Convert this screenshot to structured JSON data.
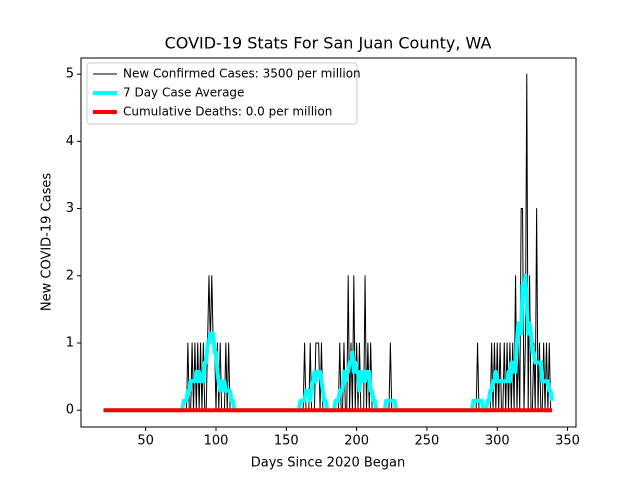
{
  "chart_data": {
    "type": "line",
    "title": "COVID-19 Stats For San Juan County, WA",
    "xlabel": "Days Since 2020 Began",
    "ylabel": "New COVID-19 Cases",
    "xlim": [
      4,
      356
    ],
    "ylim": [
      -0.25,
      5.24
    ],
    "xticks": [
      50,
      100,
      150,
      200,
      250,
      300,
      350
    ],
    "yticks": [
      0,
      1,
      2,
      3,
      4,
      5
    ],
    "legend": "upper left",
    "x": [
      20,
      21,
      22,
      23,
      24,
      25,
      26,
      27,
      28,
      29,
      30,
      31,
      32,
      33,
      34,
      35,
      36,
      37,
      38,
      39,
      40,
      41,
      42,
      43,
      44,
      45,
      46,
      47,
      48,
      49,
      50,
      51,
      52,
      53,
      54,
      55,
      56,
      57,
      58,
      59,
      60,
      61,
      62,
      63,
      64,
      65,
      66,
      67,
      68,
      69,
      70,
      71,
      72,
      73,
      74,
      75,
      76,
      77,
      78,
      79,
      80,
      81,
      82,
      83,
      84,
      85,
      86,
      87,
      88,
      89,
      90,
      91,
      92,
      93,
      94,
      95,
      96,
      97,
      98,
      99,
      100,
      101,
      102,
      103,
      104,
      105,
      106,
      107,
      108,
      109,
      110,
      111,
      112,
      113,
      114,
      115,
      116,
      117,
      118,
      119,
      120,
      121,
      122,
      123,
      124,
      125,
      126,
      127,
      128,
      129,
      130,
      131,
      132,
      133,
      134,
      135,
      136,
      137,
      138,
      139,
      140,
      141,
      142,
      143,
      144,
      145,
      146,
      147,
      148,
      149,
      150,
      151,
      152,
      153,
      154,
      155,
      156,
      157,
      158,
      159,
      160,
      161,
      162,
      163,
      164,
      165,
      166,
      167,
      168,
      169,
      170,
      171,
      172,
      173,
      174,
      175,
      176,
      177,
      178,
      179,
      180,
      181,
      182,
      183,
      184,
      185,
      186,
      187,
      188,
      189,
      190,
      191,
      192,
      193,
      194,
      195,
      196,
      197,
      198,
      199,
      200,
      201,
      202,
      203,
      204,
      205,
      206,
      207,
      208,
      209,
      210,
      211,
      212,
      213,
      214,
      215,
      216,
      217,
      218,
      219,
      220,
      221,
      222,
      223,
      224,
      225,
      226,
      227,
      228,
      229,
      230,
      231,
      232,
      233,
      234,
      235,
      236,
      237,
      238,
      239,
      240,
      241,
      242,
      243,
      244,
      245,
      246,
      247,
      248,
      249,
      250,
      251,
      252,
      253,
      254,
      255,
      256,
      257,
      258,
      259,
      260,
      261,
      262,
      263,
      264,
      265,
      266,
      267,
      268,
      269,
      270,
      271,
      272,
      273,
      274,
      275,
      276,
      277,
      278,
      279,
      280,
      281,
      282,
      283,
      284,
      285,
      286,
      287,
      288,
      289,
      290,
      291,
      292,
      293,
      294,
      295,
      296,
      297,
      298,
      299,
      300,
      301,
      302,
      303,
      304,
      305,
      306,
      307,
      308,
      309,
      310,
      311,
      312,
      313,
      314,
      315,
      316,
      317,
      318,
      319,
      320,
      321,
      322,
      323,
      324,
      325,
      326,
      327,
      328,
      329,
      330,
      331,
      332,
      333,
      334,
      335,
      336,
      337,
      338,
      339
    ],
    "series": [
      {
        "name": "New Confirmed Cases: 3500 per million",
        "color": "#000000",
        "linewidth": 1,
        "values": [
          0,
          0,
          0,
          0,
          0,
          0,
          0,
          0,
          0,
          0,
          0,
          0,
          0,
          0,
          0,
          0,
          0,
          0,
          0,
          0,
          0,
          0,
          0,
          0,
          0,
          0,
          0,
          0,
          0,
          0,
          0,
          0,
          0,
          0,
          0,
          0,
          0,
          0,
          0,
          0,
          0,
          0,
          0,
          0,
          0,
          0,
          0,
          0,
          0,
          0,
          0,
          0,
          0,
          0,
          0,
          0,
          0,
          0,
          0,
          0,
          1,
          0,
          0,
          1,
          0,
          1,
          0,
          1,
          0,
          1,
          0,
          1,
          0,
          0,
          1,
          2,
          1,
          2,
          1,
          1,
          0,
          1,
          0,
          1,
          0,
          0,
          0,
          1,
          0,
          1,
          0,
          0,
          0,
          0,
          0,
          0,
          0,
          0,
          0,
          0,
          0,
          0,
          0,
          0,
          0,
          0,
          0,
          0,
          0,
          0,
          0,
          0,
          0,
          0,
          0,
          0,
          0,
          0,
          0,
          0,
          0,
          0,
          0,
          0,
          0,
          0,
          0,
          0,
          0,
          0,
          0,
          0,
          0,
          0,
          0,
          0,
          0,
          0,
          0,
          0,
          0,
          0,
          0,
          1,
          0,
          0,
          0,
          1,
          0,
          0,
          0,
          1,
          1,
          1,
          0,
          1,
          0,
          0,
          0,
          0,
          0,
          0,
          0,
          0,
          0,
          0,
          0,
          0,
          1,
          0,
          0,
          1,
          0,
          0,
          2,
          0,
          1,
          0,
          2,
          0,
          1,
          0,
          1,
          0,
          0,
          0,
          2,
          0,
          1,
          0,
          1,
          0,
          0,
          0,
          0,
          0,
          0,
          0,
          0,
          0,
          0,
          0,
          0,
          0,
          1,
          0,
          0,
          0,
          0,
          0,
          0,
          0,
          0,
          0,
          0,
          0,
          0,
          0,
          0,
          0,
          0,
          0,
          0,
          0,
          0,
          0,
          0,
          0,
          0,
          0,
          0,
          0,
          0,
          0,
          0,
          0,
          0,
          0,
          0,
          0,
          0,
          0,
          0,
          0,
          0,
          0,
          0,
          0,
          0,
          0,
          0,
          0,
          0,
          0,
          0,
          0,
          0,
          0,
          0,
          0,
          0,
          0,
          0,
          0,
          0,
          0,
          1,
          0,
          0,
          0,
          0,
          0,
          0,
          0,
          0,
          0,
          1,
          0,
          1,
          0,
          1,
          0,
          1,
          0,
          0,
          1,
          0,
          1,
          0,
          1,
          0,
          1,
          0,
          2,
          0,
          1,
          0,
          3,
          3,
          0,
          1,
          5,
          0,
          2,
          0,
          0,
          1,
          0,
          3,
          0,
          1,
          0,
          0,
          1,
          0,
          1,
          0,
          1,
          0,
          0
        ]
      },
      {
        "name": "7 Day Case Average",
        "color": "#00ffff",
        "linewidth": 4,
        "values": [
          0,
          0,
          0,
          0,
          0,
          0,
          0,
          0,
          0,
          0,
          0,
          0,
          0,
          0,
          0,
          0,
          0,
          0,
          0,
          0,
          0,
          0,
          0,
          0,
          0,
          0,
          0,
          0,
          0,
          0,
          0,
          0,
          0,
          0,
          0,
          0,
          0,
          0,
          0,
          0,
          0,
          0,
          0,
          0,
          0,
          0,
          0,
          0,
          0,
          0,
          0,
          0,
          0,
          0,
          0,
          0,
          0,
          0.14,
          0.14,
          0.14,
          0.29,
          0.29,
          0.43,
          0.43,
          0.43,
          0.43,
          0.57,
          0.43,
          0.57,
          0.43,
          0.43,
          0.43,
          0.71,
          0.71,
          1.0,
          1.0,
          1.14,
          1.14,
          1.14,
          0.86,
          0.86,
          0.57,
          0.43,
          0.29,
          0.43,
          0.29,
          0.43,
          0.29,
          0.29,
          0.29,
          0.29,
          0.14,
          0.14,
          0,
          0,
          0,
          0,
          0,
          0,
          0,
          0,
          0,
          0,
          0,
          0,
          0,
          0,
          0,
          0,
          0,
          0,
          0,
          0,
          0,
          0,
          0,
          0,
          0,
          0,
          0,
          0,
          0,
          0,
          0,
          0,
          0,
          0,
          0,
          0,
          0,
          0,
          0,
          0,
          0,
          0,
          0,
          0,
          0,
          0,
          0,
          0.14,
          0.14,
          0.14,
          0.14,
          0.29,
          0.29,
          0.29,
          0.14,
          0.29,
          0.43,
          0.57,
          0.43,
          0.57,
          0.57,
          0.57,
          0.43,
          0.29,
          0.14,
          0.14,
          0,
          0,
          0,
          0,
          0,
          0,
          0.14,
          0.14,
          0.14,
          0.29,
          0.29,
          0.29,
          0.57,
          0.43,
          0.57,
          0.57,
          0.71,
          0.71,
          0.86,
          0.57,
          0.71,
          0.57,
          0.57,
          0.29,
          0.57,
          0.43,
          0.57,
          0.43,
          0.57,
          0.57,
          0.57,
          0.29,
          0.29,
          0.14,
          0.14,
          0,
          0,
          0,
          0,
          0,
          0,
          0,
          0.14,
          0.14,
          0.14,
          0.14,
          0.14,
          0.14,
          0.14,
          0,
          0,
          0,
          0,
          0,
          0,
          0,
          0,
          0,
          0,
          0,
          0,
          0,
          0,
          0,
          0,
          0,
          0,
          0,
          0,
          0,
          0,
          0,
          0,
          0,
          0,
          0,
          0,
          0,
          0,
          0,
          0,
          0,
          0,
          0,
          0,
          0,
          0,
          0,
          0,
          0,
          0,
          0,
          0,
          0,
          0,
          0,
          0,
          0,
          0,
          0,
          0,
          0,
          0,
          0,
          0.14,
          0.14,
          0.14,
          0.14,
          0.14,
          0.14,
          0.14,
          0,
          0,
          0,
          0.14,
          0.14,
          0.29,
          0.29,
          0.43,
          0.43,
          0.57,
          0.43,
          0.43,
          0.43,
          0.43,
          0.43,
          0.43,
          0.43,
          0.43,
          0.57,
          0.43,
          0.71,
          0.57,
          0.71,
          0.57,
          1.0,
          1.29,
          1.29,
          1.14,
          1.86,
          1.71,
          2.0,
          1.57,
          1.14,
          1.29,
          1.14,
          0.86,
          0.86,
          0.71,
          0.71,
          0.71,
          0.71,
          0.71,
          0.43,
          0.43,
          0.43,
          0.43,
          0.43,
          0.29,
          0.29,
          0.14
        ]
      },
      {
        "name": "Cumulative Deaths: 0.0 per million",
        "color": "#ff0000",
        "linewidth": 4,
        "x": [
          20,
          339
        ],
        "values": [
          0,
          0
        ]
      }
    ]
  }
}
